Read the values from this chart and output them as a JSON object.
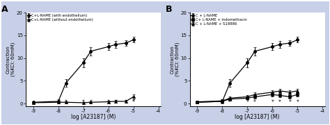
{
  "background_color": "#c8d0e8",
  "plot_bg": "#ffffff",
  "panel_A": {
    "label": "A",
    "series": [
      {
        "name": "C+L-NAME (with endothelium)",
        "marker": "o",
        "color": "black",
        "filled": true,
        "x": [
          -9,
          -8,
          -7.7,
          -7,
          -6.7,
          -6,
          -5.7,
          -5.3,
          -5
        ],
        "y": [
          0.3,
          0.5,
          4.5,
          9.0,
          11.5,
          12.5,
          13.0,
          13.3,
          14.0
        ],
        "yerr": [
          0.2,
          0.5,
          0.8,
          1.0,
          0.9,
          0.8,
          0.7,
          0.6,
          0.6
        ]
      },
      {
        "name": "C+L-NAME (without endothelium)",
        "marker": "^",
        "color": "black",
        "filled": true,
        "x": [
          -9,
          -8,
          -7.7,
          -7,
          -6.7,
          -6,
          -5.7,
          -5.3,
          -5
        ],
        "y": [
          0.2,
          0.3,
          0.3,
          0.2,
          0.3,
          0.4,
          0.5,
          0.5,
          1.5
        ],
        "yerr": [
          0.1,
          0.2,
          0.2,
          0.15,
          0.2,
          0.25,
          0.3,
          0.3,
          0.5
        ]
      }
    ],
    "star_x": [
      -7.7,
      -7,
      -6.7,
      -6,
      -5.7,
      -5.3,
      -5
    ],
    "star_y": [
      0.0,
      0.0,
      0.0,
      0.0,
      0.0,
      0.0,
      0.0
    ],
    "xlabel": "log [A23187] (M)",
    "ylabel": "Contraction\n(%KCl: 60mM)",
    "ylim": [
      -0.5,
      20
    ],
    "yticks": [
      0,
      5,
      10,
      15,
      20
    ],
    "xlim": [
      -9.3,
      -3.9
    ],
    "xticks": [
      -9,
      -8,
      -7,
      -6,
      -5,
      -4
    ]
  },
  "panel_B": {
    "label": "B",
    "series": [
      {
        "name": "C + L-NAME",
        "marker": "o",
        "color": "black",
        "filled": true,
        "x": [
          -9,
          -8,
          -7.7,
          -7,
          -6.7,
          -6,
          -5.7,
          -5.3,
          -5
        ],
        "y": [
          0.3,
          0.5,
          4.5,
          9.0,
          11.5,
          12.5,
          13.0,
          13.3,
          14.0
        ],
        "yerr": [
          0.2,
          0.5,
          0.8,
          1.0,
          0.9,
          0.8,
          0.7,
          0.6,
          0.6
        ]
      },
      {
        "name": "C+ L-NAME + Indomethacin",
        "marker": "s",
        "color": "black",
        "filled": true,
        "x": [
          -9,
          -8,
          -7.7,
          -7,
          -6.7,
          -6,
          -5.7,
          -5.3,
          -5
        ],
        "y": [
          0.3,
          0.5,
          1.0,
          1.2,
          1.5,
          2.0,
          1.8,
          1.5,
          2.0
        ],
        "yerr": [
          0.1,
          0.3,
          0.3,
          0.3,
          0.4,
          0.4,
          0.4,
          0.4,
          0.4
        ]
      },
      {
        "name": "C + L-NAME + S18886",
        "marker": "^",
        "color": "black",
        "filled": true,
        "x": [
          -9,
          -8,
          -7.7,
          -7,
          -6.7,
          -6,
          -5.7,
          -5.3,
          -5
        ],
        "y": [
          0.4,
          0.6,
          1.2,
          1.5,
          2.0,
          2.5,
          2.8,
          2.5,
          2.8
        ],
        "yerr": [
          0.1,
          0.3,
          0.4,
          0.4,
          0.5,
          0.5,
          0.5,
          0.5,
          0.5
        ]
      }
    ],
    "star_x": [
      -7.7,
      -7,
      -6.7,
      -6,
      -5.7,
      -5.3,
      -5
    ],
    "star_y": [
      0.0,
      0.0,
      0.0,
      0.0,
      0.0,
      0.0,
      0.0
    ],
    "xlabel": "log [A23187] (M)",
    "ylabel": "Contraction\n(%KCl: 60mM)",
    "ylim": [
      -0.5,
      20
    ],
    "yticks": [
      0,
      5,
      10,
      15,
      20
    ],
    "xlim": [
      -9.3,
      -3.9
    ],
    "xticks": [
      -9,
      -8,
      -7,
      -6,
      -5,
      -4
    ]
  }
}
